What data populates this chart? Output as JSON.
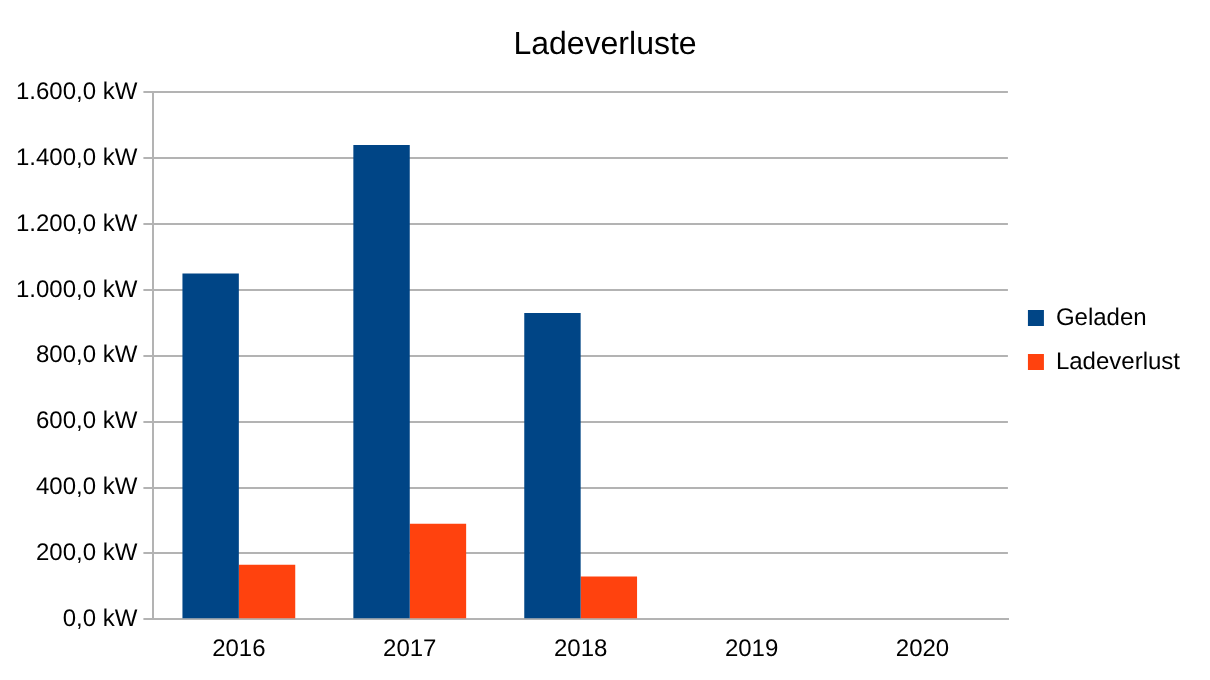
{
  "chart_data": {
    "type": "bar",
    "title": "Ladeverluste",
    "categories": [
      "2016",
      "2017",
      "2018",
      "2019",
      "2020"
    ],
    "series": [
      {
        "name": "Geladen",
        "color": "#004586",
        "values": [
          1050,
          1440,
          930,
          null,
          null
        ]
      },
      {
        "name": "Ladeverlust",
        "color": "#ff420e",
        "values": [
          165,
          290,
          130,
          null,
          null
        ]
      }
    ],
    "ylim": [
      0,
      1600
    ],
    "yticks": [
      {
        "value": 0,
        "label": "0,0 kW"
      },
      {
        "value": 200,
        "label": "200,0 kW"
      },
      {
        "value": 400,
        "label": "400,0 kW"
      },
      {
        "value": 600,
        "label": "600,0 kW"
      },
      {
        "value": 800,
        "label": "800,0 kW"
      },
      {
        "value": 1000,
        "label": "1.000,0 kW"
      },
      {
        "value": 1200,
        "label": "1.200,0 kW"
      },
      {
        "value": 1400,
        "label": "1.400,0 kW"
      },
      {
        "value": 1600,
        "label": "1.600,0 kW"
      }
    ],
    "grid": "y",
    "legend": "right"
  }
}
